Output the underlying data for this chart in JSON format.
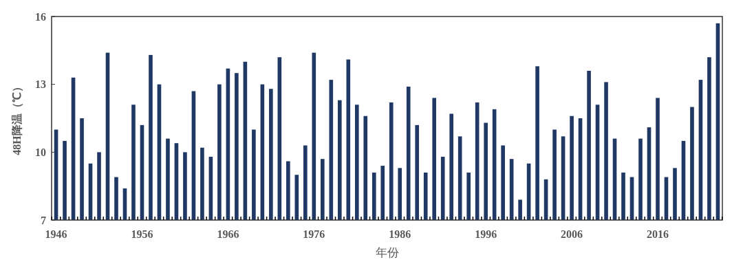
{
  "chart_data": {
    "type": "bar",
    "xlabel": "年份",
    "ylabel": "48H降温（℃）",
    "categories": [
      "1946",
      null,
      null,
      null,
      null,
      null,
      null,
      null,
      null,
      null,
      "1956",
      null,
      null,
      null,
      null,
      null,
      null,
      null,
      null,
      null,
      "1966",
      null,
      null,
      null,
      null,
      null,
      null,
      null,
      null,
      null,
      "1976",
      null,
      null,
      null,
      null,
      null,
      null,
      null,
      null,
      null,
      "1986",
      null,
      null,
      null,
      null,
      null,
      null,
      null,
      null,
      null,
      "1996",
      null,
      null,
      null,
      null,
      null,
      null,
      null,
      null,
      null,
      "2006",
      null,
      null,
      null,
      null,
      null,
      null,
      null,
      null,
      null,
      "2016",
      null,
      null,
      null,
      null,
      null,
      null,
      null
    ],
    "values": [
      11.0,
      10.5,
      13.3,
      11.5,
      9.5,
      10.0,
      14.4,
      8.9,
      8.4,
      12.1,
      11.2,
      14.3,
      13.0,
      10.6,
      10.4,
      10.0,
      12.7,
      10.2,
      9.8,
      13.0,
      13.7,
      13.5,
      14.0,
      11.0,
      13.0,
      12.8,
      14.2,
      9.6,
      9.0,
      10.3,
      14.4,
      9.7,
      13.2,
      12.3,
      14.1,
      12.1,
      11.6,
      9.1,
      9.4,
      12.2,
      9.3,
      12.9,
      11.2,
      9.1,
      12.4,
      9.8,
      11.7,
      10.7,
      9.1,
      12.2,
      11.3,
      11.9,
      10.3,
      9.7,
      7.9,
      9.5,
      13.8,
      8.8,
      11.0,
      10.7,
      11.6,
      11.5,
      13.6,
      12.1,
      13.1,
      10.6,
      9.1,
      8.9,
      10.6,
      11.1,
      12.4,
      8.9,
      9.3,
      10.5,
      12.0,
      13.2,
      14.2,
      15.7
    ],
    "color": "#1f3864",
    "ylim": [
      7,
      16
    ],
    "yticks": [
      7,
      10,
      13,
      16
    ],
    "grid": false
  }
}
